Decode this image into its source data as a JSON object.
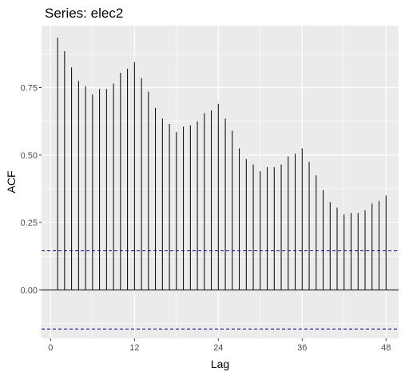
{
  "chart_data": {
    "type": "bar",
    "title": "Series: elec2",
    "xlabel": "Lag",
    "ylabel": "ACF",
    "xlim": [
      -1.3,
      49.8
    ],
    "ylim": [
      -0.18,
      0.98
    ],
    "x_ticks": [
      0,
      12,
      24,
      36,
      48
    ],
    "y_ticks": [
      0.0,
      0.25,
      0.5,
      0.75
    ],
    "x_tick_labels": [
      "0",
      "12",
      "24",
      "36",
      "48"
    ],
    "y_tick_labels": [
      "0.00",
      "0.25",
      "0.50",
      "0.75"
    ],
    "grid": true,
    "lags": [
      1,
      2,
      3,
      4,
      5,
      6,
      7,
      8,
      9,
      10,
      11,
      12,
      13,
      14,
      15,
      16,
      17,
      18,
      19,
      20,
      21,
      22,
      23,
      24,
      25,
      26,
      27,
      28,
      29,
      30,
      31,
      32,
      33,
      34,
      35,
      36,
      37,
      38,
      39,
      40,
      41,
      42,
      43,
      44,
      45,
      46,
      47,
      48
    ],
    "acf": [
      0.935,
      0.885,
      0.825,
      0.775,
      0.755,
      0.725,
      0.745,
      0.745,
      0.765,
      0.805,
      0.82,
      0.845,
      0.785,
      0.735,
      0.675,
      0.635,
      0.615,
      0.585,
      0.605,
      0.61,
      0.625,
      0.655,
      0.665,
      0.69,
      0.635,
      0.59,
      0.525,
      0.485,
      0.465,
      0.44,
      0.455,
      0.455,
      0.465,
      0.495,
      0.505,
      0.525,
      0.475,
      0.425,
      0.37,
      0.325,
      0.305,
      0.28,
      0.285,
      0.285,
      0.295,
      0.32,
      0.33,
      0.35
    ],
    "ci": 0.145,
    "colors": {
      "panel": "#ebebeb",
      "grid_major": "#ffffff",
      "bar": "#000000",
      "ci_line": "#00008b",
      "text": "#000000",
      "tick_text": "#4d4d4d"
    }
  }
}
